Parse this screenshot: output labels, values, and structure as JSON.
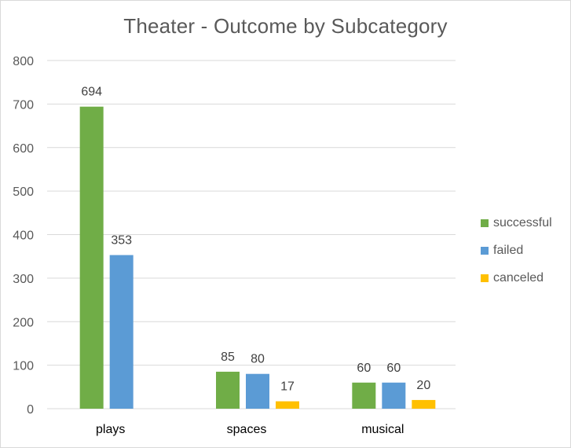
{
  "chart_data": {
    "type": "bar",
    "title": "Theater - Outcome by Subcategory",
    "categories": [
      "plays",
      "spaces",
      "musical"
    ],
    "series": [
      {
        "name": "successful",
        "color": "#70ad47",
        "values": [
          694,
          85,
          60
        ]
      },
      {
        "name": "failed",
        "color": "#5b9bd5",
        "values": [
          353,
          80,
          60
        ]
      },
      {
        "name": "canceled",
        "color": "#ffc000",
        "values": [
          null,
          17,
          20
        ]
      }
    ],
    "ylim": [
      0,
      800
    ],
    "yticks": [
      0,
      100,
      200,
      300,
      400,
      500,
      600,
      700,
      800
    ],
    "grid": true,
    "legend_position": "right",
    "data_labels": true
  }
}
